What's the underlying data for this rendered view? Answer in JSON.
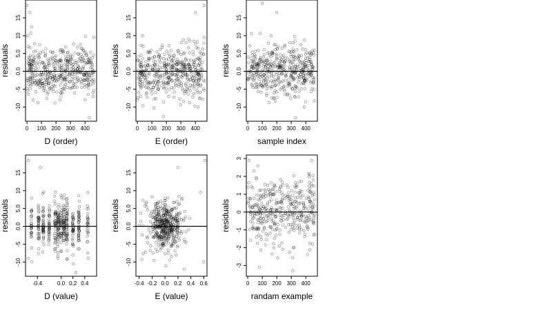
{
  "chart_data": [
    {
      "type": "scatter",
      "xlabel": "D (order)",
      "ylabel": "residuals",
      "xlim": [
        -10,
        480
      ],
      "ylim": [
        -14,
        20
      ],
      "xticks": [
        0,
        100,
        200,
        300,
        400
      ],
      "xtick_labels": [
        "0",
        "100",
        "200",
        "300",
        "400"
      ],
      "yticks": [
        -10,
        -5,
        0,
        5,
        10,
        15
      ],
      "ytick_labels": [
        "-10",
        "-5",
        "0.0",
        "5.0",
        "10",
        "15"
      ],
      "hline": 0,
      "grid": false,
      "n_points": 460,
      "x_range": [
        0,
        460
      ],
      "y_spread": 3.5,
      "outliers": [
        [
          0,
          18.5
        ],
        [
          20,
          16.5
        ],
        [
          5,
          10
        ],
        [
          430,
          -13
        ],
        [
          460,
          9.5
        ]
      ],
      "seed": 11
    },
    {
      "type": "scatter",
      "xlabel": "E (order)",
      "ylabel": "residuals",
      "xlim": [
        -10,
        480
      ],
      "ylim": [
        -14,
        20
      ],
      "xticks": [
        0,
        100,
        200,
        300,
        400
      ],
      "xtick_labels": [
        "0",
        "100",
        "200",
        "300",
        "400"
      ],
      "yticks": [
        -10,
        -5,
        0,
        5,
        10,
        15
      ],
      "ytick_labels": [
        "-10",
        "-5",
        "0.0",
        "5.0",
        "10",
        "15"
      ],
      "hline": 0,
      "grid": false,
      "n_points": 460,
      "x_range": [
        0,
        460
      ],
      "y_spread": 3.5,
      "outliers": [
        [
          460,
          18.5
        ],
        [
          400,
          16.5
        ],
        [
          420,
          -10
        ],
        [
          460,
          9.5
        ],
        [
          0,
          -8
        ]
      ],
      "seed": 23
    },
    {
      "type": "scatter",
      "xlabel": "sample index",
      "ylabel": "residuals",
      "xlim": [
        -10,
        480
      ],
      "ylim": [
        -14,
        20
      ],
      "xticks": [
        0,
        100,
        200,
        300,
        400
      ],
      "xtick_labels": [
        "0",
        "100",
        "200",
        "300",
        "400"
      ],
      "yticks": [
        -10,
        -5,
        0,
        5,
        10,
        15
      ],
      "ytick_labels": [
        "-10",
        "-5",
        "0.0",
        "5.0",
        "10",
        "15"
      ],
      "hline": 0,
      "grid": false,
      "n_points": 460,
      "x_range": [
        0,
        460
      ],
      "y_spread": 3.5,
      "outliers": [
        [
          100,
          19
        ],
        [
          200,
          16.5
        ],
        [
          330,
          -13
        ],
        [
          390,
          -10
        ],
        [
          160,
          10
        ]
      ],
      "seed": 37
    },
    {
      "type": "scatter",
      "xlabel": "D (value)",
      "ylabel": "residuals",
      "xlim": [
        -0.6,
        0.6
      ],
      "ylim": [
        -14,
        20
      ],
      "xticks": [
        -0.4,
        0,
        0.2,
        0.4
      ],
      "xtick_labels": [
        "-0.4",
        "0.0",
        "0.2",
        "0.4"
      ],
      "yticks": [
        -10,
        -5,
        0,
        5,
        10,
        15
      ],
      "ytick_labels": [
        "-10",
        "-5",
        "0.0",
        "5.0",
        "10",
        "15"
      ],
      "hline": 0,
      "grid": false,
      "n_points": 460,
      "x_columns": [
        -0.5,
        -0.38,
        -0.3,
        -0.2,
        -0.1,
        -0.05,
        0,
        0.05,
        0.1,
        0.2,
        0.3,
        0.45
      ],
      "y_spread": 3.5,
      "outliers": [
        [
          -0.55,
          18.5
        ],
        [
          -0.35,
          16.5
        ],
        [
          0.25,
          -13
        ],
        [
          0.45,
          9.5
        ],
        [
          -0.55,
          -9
        ]
      ],
      "seed": 53
    },
    {
      "type": "scatter",
      "xlabel": "E (value)",
      "ylabel": "residuals",
      "xlim": [
        -0.45,
        0.65
      ],
      "ylim": [
        -14,
        20
      ],
      "xticks": [
        -0.4,
        -0.2,
        0,
        0.2,
        0.4,
        0.6
      ],
      "xtick_labels": [
        "-0.4",
        "-0.2",
        "0.0",
        "0.2",
        "0.4",
        "0.6"
      ],
      "hline": 0,
      "yticks": [
        -10,
        -5,
        0,
        5,
        10,
        15
      ],
      "ytick_labels": [
        "-10",
        "-5",
        "0.0",
        "5.0",
        "10",
        "15"
      ],
      "grid": false,
      "n_points": 460,
      "x_center": 0,
      "x_sd": 0.14,
      "y_spread": 3.5,
      "outliers": [
        [
          0.62,
          18.5
        ],
        [
          0.2,
          16.5
        ],
        [
          0.6,
          -10
        ],
        [
          0.55,
          9.5
        ],
        [
          0.3,
          -12
        ]
      ],
      "seed": 71
    },
    {
      "type": "scatter",
      "xlabel": "randam example",
      "ylabel": "residuals",
      "xlim": [
        -10,
        480
      ],
      "ylim": [
        -3.6,
        3.2
      ],
      "xticks": [
        0,
        100,
        200,
        300,
        400
      ],
      "xtick_labels": [
        "0",
        "100",
        "200",
        "300",
        "400"
      ],
      "yticks": [
        -3,
        -2,
        -1,
        0,
        1,
        2,
        3
      ],
      "ytick_labels": [
        "-3",
        "-2",
        "-1",
        "0",
        "1",
        "2",
        "3"
      ],
      "hline": 0,
      "grid": false,
      "n_points": 400,
      "x_range": [
        0,
        460
      ],
      "y_spread": 1.0,
      "outliers": [
        [
          80,
          -3.1
        ],
        [
          310,
          -3.3
        ],
        [
          440,
          2.9
        ],
        [
          70,
          2.6
        ]
      ],
      "seed": 97
    }
  ]
}
